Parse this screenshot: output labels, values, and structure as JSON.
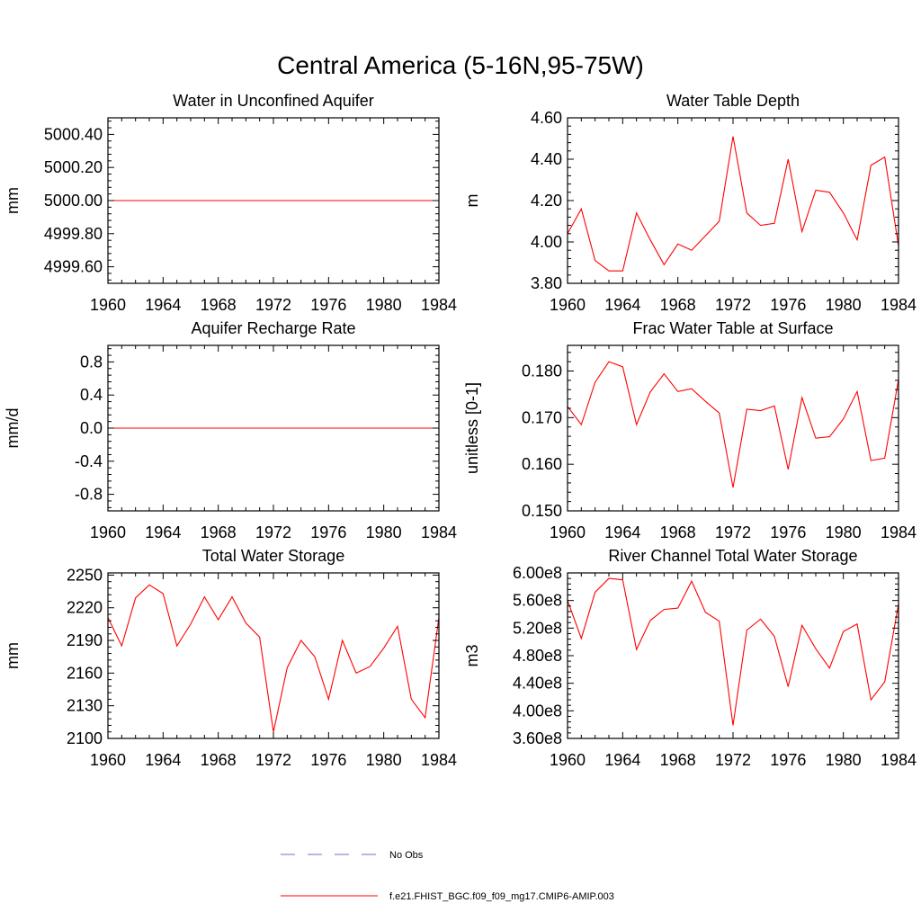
{
  "figure": {
    "title": "Central America (5-16N,95-75W)"
  },
  "colors": {
    "model": "#ff0000",
    "obs": "#6f6fc8",
    "axis": "#000000",
    "background": "#ffffff"
  },
  "legend": {
    "items": [
      {
        "label": "No Obs",
        "style": "dashed",
        "color": "#6f6fc8"
      },
      {
        "label": "f.e21.FHIST_BGC.f09_f09_mg17.CMIP6-AMIP.003",
        "style": "solid",
        "color": "#ff0000"
      }
    ]
  },
  "chart_data": [
    {
      "type": "line",
      "title": "Water in Unconfined Aquifer",
      "xlabel": "",
      "ylabel": "mm",
      "xlim": [
        1960,
        1984
      ],
      "ylim": [
        4999.5,
        5000.5
      ],
      "xticks": [
        1960,
        1964,
        1968,
        1972,
        1976,
        1980,
        1984
      ],
      "xtick_labels": [
        "1960",
        "1964",
        "1968",
        "1972",
        "1976",
        "1980",
        "1984"
      ],
      "yticks": [
        4999.6,
        4999.8,
        5000.0,
        5000.2,
        5000.4
      ],
      "ytick_labels": [
        "4999.60",
        "4999.80",
        "5000.00",
        "5000.20",
        "5000.40"
      ],
      "x": [
        1960,
        1961,
        1962,
        1963,
        1964,
        1965,
        1966,
        1967,
        1968,
        1969,
        1970,
        1971,
        1972,
        1973,
        1974,
        1975,
        1976,
        1977,
        1978,
        1979,
        1980,
        1981,
        1982,
        1983,
        1984
      ],
      "series": [
        {
          "values": [
            5000,
            5000,
            5000,
            5000,
            5000,
            5000,
            5000,
            5000,
            5000,
            5000,
            5000,
            5000,
            5000,
            5000,
            5000,
            5000,
            5000,
            5000,
            5000,
            5000,
            5000,
            5000,
            5000,
            5000,
            5000
          ]
        }
      ]
    },
    {
      "type": "line",
      "title": "Water Table Depth",
      "xlabel": "",
      "ylabel": "m",
      "xlim": [
        1960,
        1984
      ],
      "ylim": [
        3.8,
        4.6
      ],
      "xticks": [
        1960,
        1964,
        1968,
        1972,
        1976,
        1980,
        1984
      ],
      "xtick_labels": [
        "1960",
        "1964",
        "1968",
        "1972",
        "1976",
        "1980",
        "1984"
      ],
      "yticks": [
        3.8,
        4.0,
        4.2,
        4.4,
        4.6
      ],
      "ytick_labels": [
        "3.80",
        "4.00",
        "4.20",
        "4.40",
        "4.60"
      ],
      "x": [
        1960,
        1961,
        1962,
        1963,
        1964,
        1965,
        1966,
        1967,
        1968,
        1969,
        1970,
        1971,
        1972,
        1973,
        1974,
        1975,
        1976,
        1977,
        1978,
        1979,
        1980,
        1981,
        1982,
        1983,
        1984
      ],
      "series": [
        {
          "values": [
            4.04,
            4.16,
            3.91,
            3.86,
            3.86,
            4.14,
            4.01,
            3.89,
            3.99,
            3.96,
            4.03,
            4.1,
            4.51,
            4.14,
            4.08,
            4.09,
            4.4,
            4.05,
            4.25,
            4.24,
            4.14,
            4.01,
            4.37,
            4.41,
            3.98
          ]
        }
      ]
    },
    {
      "type": "line",
      "title": "Aquifer Recharge Rate",
      "xlabel": "",
      "ylabel": "mm/d",
      "xlim": [
        1960,
        1984
      ],
      "ylim": [
        -1.0,
        1.0
      ],
      "xticks": [
        1960,
        1964,
        1968,
        1972,
        1976,
        1980,
        1984
      ],
      "xtick_labels": [
        "1960",
        "1964",
        "1968",
        "1972",
        "1976",
        "1980",
        "1984"
      ],
      "yticks": [
        -0.8,
        -0.4,
        0.0,
        0.4,
        0.8
      ],
      "ytick_labels": [
        "-0.8",
        "-0.4",
        "0.0",
        "0.4",
        "0.8"
      ],
      "x": [
        1960,
        1961,
        1962,
        1963,
        1964,
        1965,
        1966,
        1967,
        1968,
        1969,
        1970,
        1971,
        1972,
        1973,
        1974,
        1975,
        1976,
        1977,
        1978,
        1979,
        1980,
        1981,
        1982,
        1983,
        1984
      ],
      "series": [
        {
          "values": [
            0,
            0,
            0,
            0,
            0,
            0,
            0,
            0,
            0,
            0,
            0,
            0,
            0,
            0,
            0,
            0,
            0,
            0,
            0,
            0,
            0,
            0,
            0,
            0,
            0
          ]
        }
      ]
    },
    {
      "type": "line",
      "title": "Frac Water Table at Surface",
      "xlabel": "",
      "ylabel": "unitless [0-1]",
      "xlim": [
        1960,
        1984
      ],
      "ylim": [
        0.15,
        0.1855
      ],
      "xticks": [
        1960,
        1964,
        1968,
        1972,
        1976,
        1980,
        1984
      ],
      "xtick_labels": [
        "1960",
        "1964",
        "1968",
        "1972",
        "1976",
        "1980",
        "1984"
      ],
      "yticks": [
        0.15,
        0.16,
        0.17,
        0.18
      ],
      "ytick_labels": [
        "0.150",
        "0.160",
        "0.170",
        "0.180"
      ],
      "x": [
        1960,
        1961,
        1962,
        1963,
        1964,
        1965,
        1966,
        1967,
        1968,
        1969,
        1970,
        1971,
        1972,
        1973,
        1974,
        1975,
        1976,
        1977,
        1978,
        1979,
        1980,
        1981,
        1982,
        1983,
        1984
      ],
      "series": [
        {
          "values": [
            0.1724,
            0.1685,
            0.1776,
            0.182,
            0.1809,
            0.1685,
            0.1755,
            0.1794,
            0.1756,
            0.1762,
            0.1735,
            0.171,
            0.155,
            0.1718,
            0.1715,
            0.1725,
            0.1589,
            0.1743,
            0.1656,
            0.1659,
            0.1697,
            0.1756,
            0.1608,
            0.1613,
            0.1782
          ]
        }
      ]
    },
    {
      "type": "line",
      "title": "Total Water Storage",
      "xlabel": "",
      "ylabel": "mm",
      "xlim": [
        1960,
        1984
      ],
      "ylim": [
        2100,
        2252
      ],
      "xticks": [
        1960,
        1964,
        1968,
        1972,
        1976,
        1980,
        1984
      ],
      "xtick_labels": [
        "1960",
        "1964",
        "1968",
        "1972",
        "1976",
        "1980",
        "1984"
      ],
      "yticks": [
        2100,
        2130,
        2160,
        2190,
        2220,
        2250
      ],
      "ytick_labels": [
        "2100",
        "2130",
        "2160",
        "2190",
        "2220",
        "2250"
      ],
      "x": [
        1960,
        1961,
        1962,
        1963,
        1964,
        1965,
        1966,
        1967,
        1968,
        1969,
        1970,
        1971,
        1972,
        1973,
        1974,
        1975,
        1976,
        1977,
        1978,
        1979,
        1980,
        1981,
        1982,
        1983,
        1984
      ],
      "series": [
        {
          "values": [
            2211,
            2185,
            2229,
            2241,
            2233,
            2185,
            2205,
            2230,
            2209,
            2230,
            2206,
            2193,
            2106,
            2165,
            2190,
            2175,
            2136,
            2190,
            2160,
            2166,
            2183,
            2203,
            2136,
            2119,
            2211
          ]
        }
      ]
    },
    {
      "type": "line",
      "title": "River Channel Total Water Storage",
      "xlabel": "",
      "ylabel": "m3",
      "xlim": [
        1960,
        1984
      ],
      "ylim": [
        360000000.0,
        600000000.0
      ],
      "xticks": [
        1960,
        1964,
        1968,
        1972,
        1976,
        1980,
        1984
      ],
      "xtick_labels": [
        "1960",
        "1964",
        "1968",
        "1972",
        "1976",
        "1980",
        "1984"
      ],
      "yticks": [
        360000000.0,
        400000000.0,
        440000000.0,
        480000000.0,
        520000000.0,
        560000000.0,
        600000000.0
      ],
      "ytick_labels": [
        "3.60e8",
        "4.00e8",
        "4.40e8",
        "4.80e8",
        "5.20e8",
        "5.60e8",
        "6.00e8"
      ],
      "x": [
        1960,
        1961,
        1962,
        1963,
        1964,
        1965,
        1966,
        1967,
        1968,
        1969,
        1970,
        1971,
        1972,
        1973,
        1974,
        1975,
        1976,
        1977,
        1978,
        1979,
        1980,
        1981,
        1982,
        1983,
        1984
      ],
      "series": [
        {
          "values": [
            560000000.0,
            505000000.0,
            572000000.0,
            592000000.0,
            590000000.0,
            489000000.0,
            531000000.0,
            547000000.0,
            549000000.0,
            588000000.0,
            543000000.0,
            530000000.0,
            379000000.0,
            517000000.0,
            533000000.0,
            508000000.0,
            435000000.0,
            524000000.0,
            490000000.0,
            462000000.0,
            515000000.0,
            526000000.0,
            416000000.0,
            442000000.0,
            555000000.0
          ]
        }
      ]
    }
  ]
}
